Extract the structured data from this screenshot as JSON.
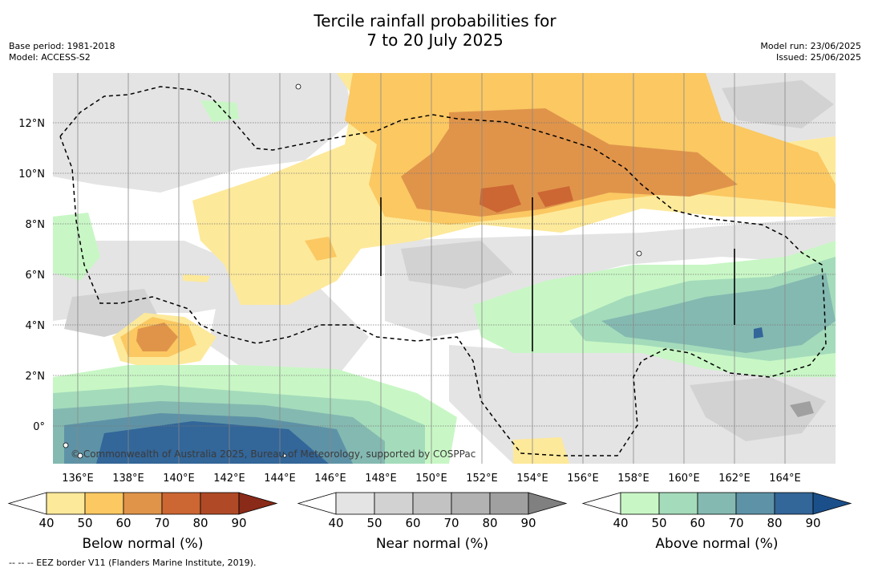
{
  "title_line1": "Tercile rainfall probabilities for",
  "title_line2": "7 to 20 July 2025",
  "base_period": "Base period: 1981-2018",
  "model": "Model: ACCESS-S2",
  "model_run": "Model run: 23/06/2025",
  "issued": "Issued: 25/06/2025",
  "copyright": "© Commonwealth of Australia 2025, Bureau of Meteorology, supported by COSPPac",
  "footnote": "-- -- -- EEZ border V11 (Flanders Marine Institute, 2019).",
  "axes": {
    "lon_labels": [
      "136°E",
      "138°E",
      "140°E",
      "142°E",
      "144°E",
      "146°E",
      "148°E",
      "150°E",
      "152°E",
      "154°E",
      "156°E",
      "158°E",
      "160°E",
      "162°E",
      "164°E"
    ],
    "lat_labels": [
      "12°N",
      "10°N",
      "8°N",
      "6°N",
      "4°N",
      "2°N",
      "0°"
    ]
  },
  "colorbars": [
    {
      "label": "Below normal (%)",
      "ticks": [
        "40",
        "50",
        "60",
        "70",
        "80",
        "90"
      ],
      "colors": [
        "#ffffff",
        "#fde99a",
        "#fbc862",
        "#e0944a",
        "#cc6633",
        "#b04a26",
        "#8a2a18"
      ]
    },
    {
      "label": "Near normal (%)",
      "ticks": [
        "40",
        "50",
        "60",
        "70",
        "80",
        "90"
      ],
      "colors": [
        "#ffffff",
        "#e4e4e4",
        "#d2d2d2",
        "#c2c2c2",
        "#b2b2b2",
        "#a0a0a0",
        "#808080"
      ]
    },
    {
      "label": "Above normal (%)",
      "ticks": [
        "40",
        "50",
        "60",
        "70",
        "80",
        "90"
      ],
      "colors": [
        "#ffffff",
        "#c8f7c5",
        "#a4dbbb",
        "#84b9b1",
        "#5e93a7",
        "#336699",
        "#1b4f8a"
      ]
    }
  ]
}
